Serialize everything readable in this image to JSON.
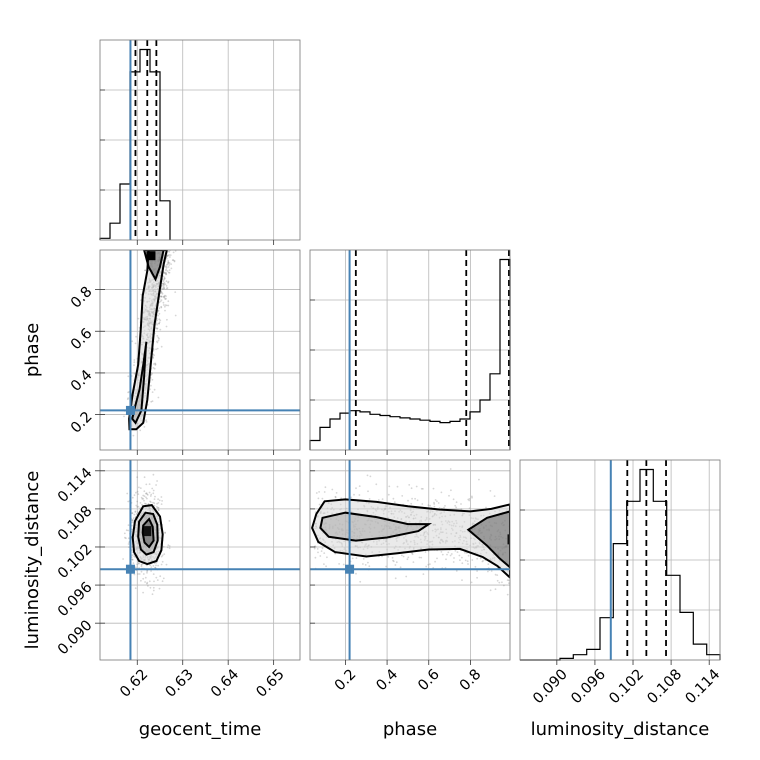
{
  "chart_data": {
    "type": "corner",
    "parameters": [
      "geocent_time",
      "phase",
      "luminosity_distance"
    ],
    "truths": {
      "geocent_time": 0.6185,
      "phase": 0.22,
      "luminosity_distance": 0.0985
    },
    "colors": {
      "truth": "#4682b4",
      "hist": "#000000",
      "samples": "#8a8a8a"
    },
    "axes": {
      "geocent_time": {
        "range": [
          0.6118,
          0.6558
        ],
        "ticks": [
          0.62,
          0.63,
          0.64,
          0.65
        ],
        "tick_labels": [
          "0.62",
          "0.63",
          "0.64",
          "0.65"
        ]
      },
      "phase": {
        "range": [
          0.03,
          0.99
        ],
        "ticks": [
          0.2,
          0.4,
          0.6,
          0.8
        ],
        "tick_labels": [
          "0.2",
          "0.4",
          "0.6",
          "0.8"
        ]
      },
      "luminosity_distance": {
        "range": [
          0.0842,
          0.1157
        ],
        "ticks": [
          0.09,
          0.096,
          0.102,
          0.108,
          0.114
        ],
        "tick_labels": [
          "0.090",
          "0.096",
          "0.102",
          "0.108",
          "0.114"
        ]
      }
    },
    "marginals": [
      {
        "parameter": "geocent_time",
        "bin_edges": [
          0.6118,
          0.614,
          0.6162,
          0.6184,
          0.6206,
          0.6228,
          0.625,
          0.6272
        ],
        "counts": [
          0.03,
          0.3,
          1.0,
          3.0,
          3.4,
          3.0,
          0.7
        ],
        "quantiles": [
          0.6196,
          0.6222,
          0.6242
        ],
        "grid": true
      },
      {
        "parameter": "phase",
        "bin_edges": [
          0.03,
          0.078,
          0.126,
          0.174,
          0.222,
          0.27,
          0.318,
          0.366,
          0.414,
          0.462,
          0.51,
          0.558,
          0.606,
          0.654,
          0.702,
          0.75,
          0.798,
          0.846,
          0.894,
          0.942,
          0.99
        ],
        "counts": [
          0.4,
          0.95,
          1.3,
          1.55,
          1.65,
          1.6,
          1.5,
          1.45,
          1.4,
          1.35,
          1.3,
          1.25,
          1.2,
          1.15,
          1.2,
          1.3,
          1.6,
          2.1,
          3.2,
          8.0
        ],
        "quantiles": [
          0.25,
          0.78,
          0.985
        ],
        "grid": true
      },
      {
        "parameter": "luminosity_distance",
        "bin_edges": [
          0.0842,
          0.0863,
          0.0884,
          0.0905,
          0.0926,
          0.0947,
          0.0968,
          0.0989,
          0.101,
          0.1031,
          0.1052,
          0.1073,
          0.1094,
          0.1115,
          0.1136,
          0.1157
        ],
        "counts": [
          0,
          0,
          0,
          0.03,
          0.1,
          0.2,
          0.8,
          2.2,
          3.0,
          3.6,
          3.0,
          1.6,
          0.9,
          0.3,
          0.1
        ],
        "quantiles": [
          0.1011,
          0.1041,
          0.1072
        ],
        "grid": true
      }
    ],
    "joint_panels": [
      {
        "x": "geocent_time",
        "y": "phase",
        "contours": [
          [
            [
              0.6198,
              0.13
            ],
            [
              0.6213,
              0.16
            ],
            [
              0.6222,
              0.27
            ],
            [
              0.6229,
              0.43
            ],
            [
              0.6238,
              0.63
            ],
            [
              0.6248,
              0.78
            ],
            [
              0.6258,
              0.92
            ],
            [
              0.6265,
              0.99
            ],
            [
              0.6225,
              0.99
            ],
            [
              0.6222,
              0.89
            ],
            [
              0.6212,
              0.77
            ],
            [
              0.6208,
              0.62
            ],
            [
              0.6202,
              0.44
            ],
            [
              0.619,
              0.3
            ],
            [
              0.6182,
              0.18
            ],
            [
              0.6183,
              0.13
            ]
          ],
          [
            [
              0.6196,
              0.16
            ],
            [
              0.6209,
              0.22
            ],
            [
              0.6215,
              0.38
            ],
            [
              0.6219,
              0.53
            ],
            [
              0.622,
              0.55
            ],
            [
              0.6214,
              0.45
            ],
            [
              0.6205,
              0.32
            ],
            [
              0.6193,
              0.22
            ],
            [
              0.6189,
              0.18
            ]
          ],
          [
            [
              0.6215,
              0.99
            ],
            [
              0.6225,
              0.91
            ],
            [
              0.624,
              0.85
            ],
            [
              0.625,
              0.91
            ],
            [
              0.6258,
              0.99
            ]
          ]
        ],
        "grid": true
      },
      {
        "x": "geocent_time",
        "y": "luminosity_distance",
        "contours": [
          [
            [
              0.6195,
              0.1061
            ],
            [
              0.6213,
              0.1084
            ],
            [
              0.6232,
              0.1086
            ],
            [
              0.625,
              0.1068
            ],
            [
              0.6256,
              0.104
            ],
            [
              0.6253,
              0.1015
            ],
            [
              0.6242,
              0.0998
            ],
            [
              0.6222,
              0.0993
            ],
            [
              0.6204,
              0.0998
            ],
            [
              0.6193,
              0.1012
            ],
            [
              0.619,
              0.1035
            ]
          ],
          [
            [
              0.6204,
              0.106
            ],
            [
              0.6218,
              0.1074
            ],
            [
              0.6235,
              0.1072
            ],
            [
              0.6244,
              0.1055
            ],
            [
              0.6245,
              0.103
            ],
            [
              0.6236,
              0.1012
            ],
            [
              0.622,
              0.1008
            ],
            [
              0.6208,
              0.1016
            ],
            [
              0.6202,
              0.1036
            ]
          ],
          [
            [
              0.6213,
              0.1054
            ],
            [
              0.6226,
              0.1064
            ],
            [
              0.6234,
              0.1052
            ],
            [
              0.6236,
              0.103
            ],
            [
              0.6226,
              0.102
            ],
            [
              0.6216,
              0.1027
            ],
            [
              0.6212,
              0.1042
            ]
          ]
        ],
        "grid": true
      },
      {
        "x": "phase",
        "y": "luminosity_distance",
        "contours": [
          [
            [
              0.06,
              0.1072
            ],
            [
              0.1,
              0.1092
            ],
            [
              0.2,
              0.1095
            ],
            [
              0.35,
              0.1091
            ],
            [
              0.5,
              0.1084
            ],
            [
              0.65,
              0.1079
            ],
            [
              0.8,
              0.1076
            ],
            [
              0.9,
              0.108
            ],
            [
              0.99,
              0.1087
            ],
            [
              0.99,
              0.0972
            ],
            [
              0.93,
              0.099
            ],
            [
              0.86,
              0.1004
            ],
            [
              0.75,
              0.1017
            ],
            [
              0.6,
              0.1016
            ],
            [
              0.45,
              0.101
            ],
            [
              0.3,
              0.1005
            ],
            [
              0.15,
              0.1012
            ],
            [
              0.07,
              0.1028
            ],
            [
              0.04,
              0.105
            ]
          ],
          [
            [
              0.09,
              0.1066
            ],
            [
              0.2,
              0.1074
            ],
            [
              0.35,
              0.1067
            ],
            [
              0.5,
              0.1056
            ],
            [
              0.6,
              0.1056
            ],
            [
              0.55,
              0.1045
            ],
            [
              0.4,
              0.1035
            ],
            [
              0.25,
              0.103
            ],
            [
              0.12,
              0.1036
            ],
            [
              0.08,
              0.105
            ]
          ],
          [
            [
              0.99,
              0.1076
            ],
            [
              0.88,
              0.1066
            ],
            [
              0.79,
              0.1047
            ],
            [
              0.88,
              0.1022
            ],
            [
              0.94,
              0.1002
            ],
            [
              0.99,
              0.0988
            ]
          ]
        ],
        "grid": true
      }
    ]
  }
}
